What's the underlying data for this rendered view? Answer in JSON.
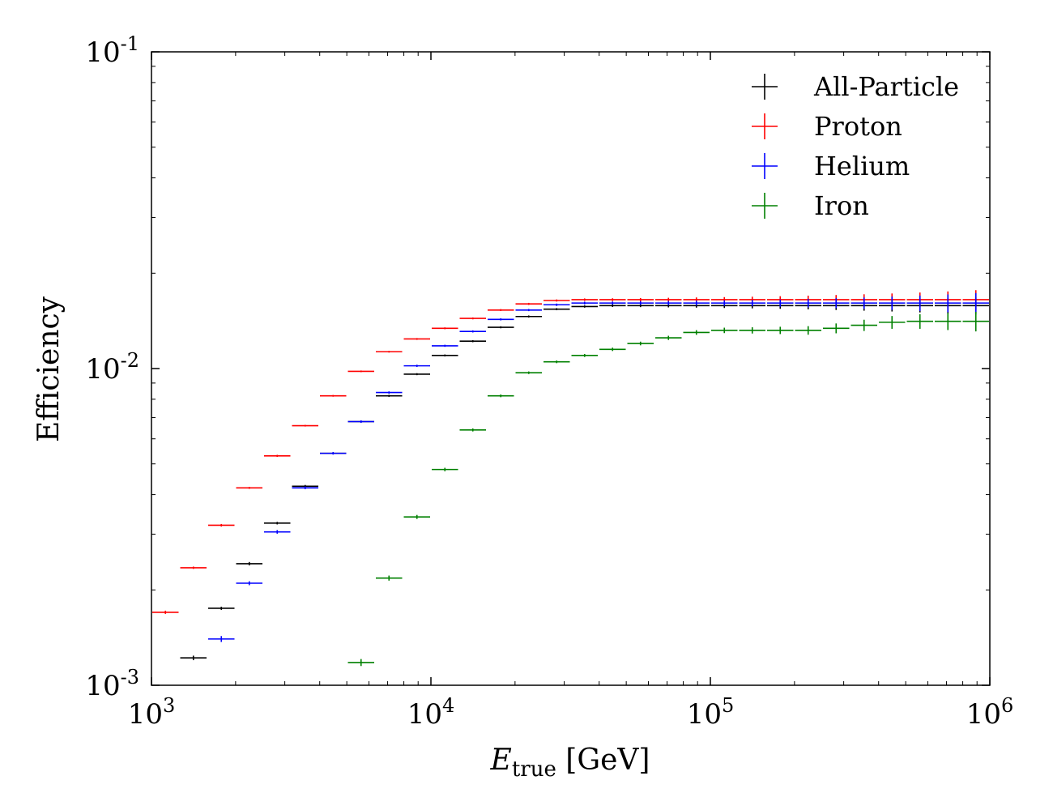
{
  "chart_data": {
    "type": "scatter",
    "title": "",
    "xlabel_main": "E",
    "xlabel_sub": "true",
    "xlabel_unit": " [GeV]",
    "ylabel": "Efficiency",
    "xscale": "log",
    "yscale": "log",
    "xlim": [
      1000,
      1000000
    ],
    "ylim": [
      0.001,
      0.1
    ],
    "x_ticks": [
      {
        "base": "10",
        "exp": "3",
        "value": 1000
      },
      {
        "base": "10",
        "exp": "4",
        "value": 10000
      },
      {
        "base": "10",
        "exp": "5",
        "value": 100000
      },
      {
        "base": "10",
        "exp": "6",
        "value": 1000000
      }
    ],
    "y_ticks": [
      {
        "base": "10",
        "exp": "-3",
        "value": 0.001
      },
      {
        "base": "10",
        "exp": "-2",
        "value": 0.01
      },
      {
        "base": "10",
        "exp": "-1",
        "value": 0.1
      }
    ],
    "legend_position": "top-right",
    "bin_edges_log10": [
      3.0,
      3.1,
      3.2,
      3.3,
      3.4,
      3.5,
      3.6,
      3.7,
      3.8,
      3.9,
      4.0,
      4.1,
      4.2,
      4.3,
      4.4,
      4.5,
      4.6,
      4.7,
      4.8,
      4.9,
      5.0,
      5.1,
      5.2,
      5.3,
      5.4,
      5.5,
      5.6,
      5.7,
      5.8,
      5.9,
      6.0
    ],
    "series": [
      {
        "name": "All-Particle",
        "color": "#000000",
        "values": [
          null,
          0.00122,
          0.00175,
          0.00242,
          0.00325,
          0.00425,
          0.0054,
          0.0068,
          0.0082,
          0.0096,
          0.011,
          0.0122,
          0.0135,
          0.0146,
          0.0154,
          0.0157,
          0.0158,
          0.0158,
          0.0158,
          0.0158,
          0.0158,
          0.0158,
          0.0158,
          0.0158,
          0.0158,
          0.0158,
          0.0158,
          0.0158,
          0.0158,
          0.0158
        ],
        "errors": [
          null,
          2e-05,
          2e-05,
          3e-05,
          3e-05,
          4e-05,
          4e-05,
          5e-05,
          6e-05,
          7e-05,
          8e-05,
          9e-05,
          0.0001,
          0.00011,
          0.00012,
          0.00013,
          0.00015,
          0.00017,
          0.0002,
          0.00023,
          0.00027,
          0.00031,
          0.00036,
          0.00042,
          0.00049,
          0.00057,
          0.00066,
          0.00076,
          0.00088,
          0.001
        ]
      },
      {
        "name": "Proton",
        "color": "#ff0000",
        "values": [
          0.0017,
          0.00235,
          0.0032,
          0.0042,
          0.0053,
          0.0066,
          0.0082,
          0.0098,
          0.0113,
          0.0124,
          0.0134,
          0.0144,
          0.0153,
          0.016,
          0.0164,
          0.0165,
          0.0165,
          0.0165,
          0.0165,
          0.0165,
          0.0165,
          0.0165,
          0.0165,
          0.0165,
          0.0165,
          0.0165,
          0.0165,
          0.0165,
          0.0165,
          0.0165
        ],
        "errors": [
          2e-05,
          2e-05,
          3e-05,
          3e-05,
          4e-05,
          4e-05,
          5e-05,
          6e-05,
          7e-05,
          8e-05,
          9e-05,
          0.0001,
          0.00011,
          0.00012,
          0.00013,
          0.00015,
          0.00017,
          0.0002,
          0.00023,
          0.00027,
          0.00031,
          0.00036,
          0.00042,
          0.00049,
          0.00057,
          0.00066,
          0.00076,
          0.00088,
          0.00102,
          0.00118
        ]
      },
      {
        "name": "Helium",
        "color": "#0000ff",
        "values": [
          null,
          null,
          0.0014,
          0.0021,
          0.00305,
          0.0042,
          0.0054,
          0.0068,
          0.0084,
          0.0102,
          0.0118,
          0.0131,
          0.0143,
          0.0153,
          0.0159,
          0.0161,
          0.0161,
          0.0161,
          0.0161,
          0.0161,
          0.0161,
          0.0161,
          0.0161,
          0.0161,
          0.0161,
          0.0161,
          0.0161,
          0.0161,
          0.0161,
          0.0161
        ],
        "errors": [
          null,
          null,
          3e-05,
          3e-05,
          4e-05,
          4e-05,
          5e-05,
          6e-05,
          7e-05,
          8e-05,
          9e-05,
          0.0001,
          0.00011,
          0.00012,
          0.00014,
          0.00016,
          0.00018,
          0.00021,
          0.00024,
          0.00028,
          0.00032,
          0.00037,
          0.00043,
          0.0005,
          0.00058,
          0.00067,
          0.00078,
          0.0009,
          0.00104,
          0.0012
        ]
      },
      {
        "name": "Iron",
        "color": "#008000",
        "values": [
          null,
          null,
          null,
          null,
          null,
          null,
          null,
          0.00118,
          0.00218,
          0.0034,
          0.0048,
          0.0064,
          0.0082,
          0.0097,
          0.0105,
          0.011,
          0.0115,
          0.012,
          0.0125,
          0.013,
          0.0132,
          0.0132,
          0.0132,
          0.0132,
          0.0134,
          0.0137,
          0.014,
          0.0141,
          0.0141,
          0.0141
        ],
        "errors": [
          null,
          null,
          null,
          null,
          null,
          null,
          null,
          3e-05,
          4e-05,
          5e-05,
          6e-05,
          7e-05,
          8e-05,
          9e-05,
          0.0001,
          0.00012,
          0.00014,
          0.00016,
          0.00019,
          0.00022,
          0.00026,
          0.0003,
          0.00035,
          0.00041,
          0.00048,
          0.00056,
          0.00065,
          0.00075,
          0.00087,
          0.001
        ]
      }
    ]
  }
}
